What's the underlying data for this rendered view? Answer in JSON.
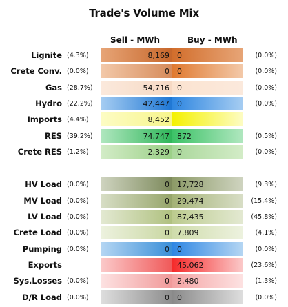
{
  "title": "Trade's Volume Mix",
  "headers": {
    "sell": "Sell - MWh",
    "buy": "Buy - MWh"
  },
  "chart_data": {
    "type": "table",
    "title": "Trade's Volume Mix",
    "columns": [
      "Sell - MWh",
      "Buy - MWh"
    ],
    "rows": [
      {
        "label": "Lignite",
        "sell_pct": "(4.3%)",
        "sell": "8,169",
        "buy": "0",
        "buy_pct": "(0.0%)",
        "colors": [
          "#c7672b",
          "#e7a577",
          "#d26e2c"
        ]
      },
      {
        "label": "Crete Conv.",
        "sell_pct": "(0.0%)",
        "sell": "0",
        "buy": "0",
        "buy_pct": "(0.0%)",
        "colors": [
          "#d68b5b",
          "#f3c9a9",
          "#e07a30"
        ]
      },
      {
        "label": "Gas",
        "sell_pct": "(28.7%)",
        "sell": "54,716",
        "buy": "0",
        "buy_pct": "(0.0%)",
        "colors": [
          "#f6d9c4",
          "#fbe9dc",
          "#fbe3d0"
        ]
      },
      {
        "label": "Hydro",
        "sell_pct": "(22.2%)",
        "sell": "42,447",
        "buy": "0",
        "buy_pct": "(0.0%)",
        "colors": [
          "#1f77d4",
          "#a6cdf2",
          "#2e86e0"
        ]
      },
      {
        "label": "Imports",
        "sell_pct": "(4.4%)",
        "sell": "8,452",
        "buy": "",
        "buy_pct": "",
        "colors": [
          "#f7f58c",
          "#fdfcc4",
          "#f4f100"
        ]
      },
      {
        "label": "RES",
        "sell_pct": "(39.2%)",
        "sell": "74,747",
        "buy": "872",
        "buy_pct": "(0.5%)",
        "colors": [
          "#2fb65a",
          "#b0e7bf",
          "#3cc267"
        ]
      },
      {
        "label": "Crete RES",
        "sell_pct": "(1.2%)",
        "sell": "2,329",
        "buy": "0",
        "buy_pct": "(0.0%)",
        "colors": [
          "#9bd087",
          "#d3ecc7",
          "#a9d79a"
        ]
      },
      {
        "label": "HV Load",
        "sell_pct": "(0.0%)",
        "sell": "0",
        "buy": "17,728",
        "buy_pct": "(9.3%)",
        "colors": [
          "#7d8a5c",
          "#cfd4c0",
          "#8c9a67"
        ]
      },
      {
        "label": "MV Load",
        "sell_pct": "(0.0%)",
        "sell": "0",
        "buy": "29,474",
        "buy_pct": "(15.4%)",
        "colors": [
          "#96a56a",
          "#d8dec6",
          "#a4b276"
        ]
      },
      {
        "label": "LV Load",
        "sell_pct": "(0.0%)",
        "sell": "0",
        "buy": "87,435",
        "buy_pct": "(45.8%)",
        "colors": [
          "#b0c180",
          "#e3e9d2",
          "#bccb8e"
        ]
      },
      {
        "label": "Crete Load",
        "sell_pct": "(0.0%)",
        "sell": "0",
        "buy": "7,809",
        "buy_pct": "(4.1%)",
        "colors": [
          "#c9d7a2",
          "#edf2df",
          "#cfdcab"
        ]
      },
      {
        "label": "Pumping",
        "sell_pct": "(0.0%)",
        "sell": "0",
        "buy": "0",
        "buy_pct": "(0.0%)",
        "colors": [
          "#3b8fd8",
          "#b5d6f3",
          "#2f86e3"
        ]
      },
      {
        "label": "Exports",
        "sell_pct": "",
        "sell": "",
        "buy": "45,062",
        "buy_pct": "(23.6%)",
        "colors": [
          "#f05a5a",
          "#fbcaca",
          "#f52a2a"
        ]
      },
      {
        "label": "Sys.Losses",
        "sell_pct": "(0.0%)",
        "sell": "0",
        "buy": "2,480",
        "buy_pct": "(1.3%)",
        "colors": [
          "#f19a9a",
          "#fde2e2",
          "#f4a3a3"
        ]
      },
      {
        "label": "D/R Load",
        "sell_pct": "(0.0%)",
        "sell": "0",
        "buy": "0",
        "buy_pct": "(0.0%)",
        "colors": [
          "#8e8e8e",
          "#dedede",
          "#8a8a8a"
        ]
      }
    ]
  }
}
